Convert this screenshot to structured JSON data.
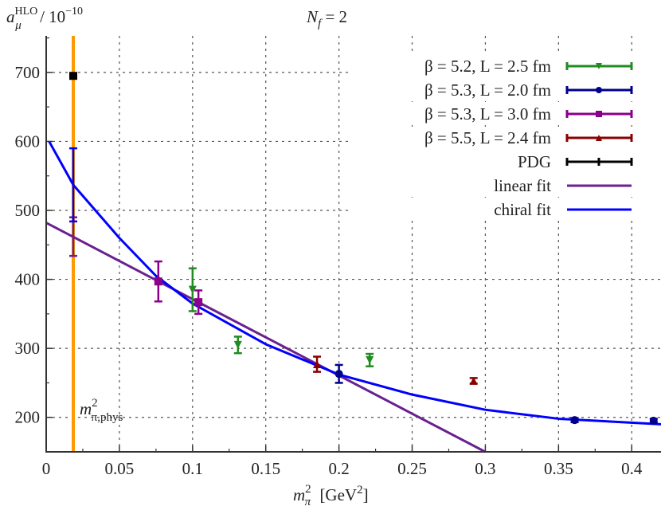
{
  "chart_data": {
    "type": "scatter",
    "title": {
      "N": "N",
      "sub": "f",
      "rest": " = 2"
    },
    "xlabel": {
      "m": "m",
      "sub": "π",
      "sup": "2",
      "unit": " [GeV",
      "unit_sup": "2",
      "close": "]"
    },
    "ylabel": {
      "a": "a",
      "sub": "μ",
      "sup": "HLO",
      "rest": " / 10",
      "exp": "−10"
    },
    "xlim": [
      0,
      0.42
    ],
    "ylim": [
      150,
      753
    ],
    "xticks": [
      0,
      0.05,
      0.1,
      0.15,
      0.2,
      0.25,
      0.3,
      0.35,
      0.4
    ],
    "xtick_labels": [
      "0",
      "0.05",
      "0.1",
      "0.15",
      "0.2",
      "0.25",
      "0.3",
      "0.35",
      "0.4"
    ],
    "yticks": [
      200,
      300,
      400,
      500,
      600,
      700
    ],
    "ytick_labels": [
      "200",
      "300",
      "400",
      "500",
      "600",
      "700"
    ],
    "grid": true,
    "legend_position": "top-right",
    "physical_point": {
      "x": 0.0185,
      "label": {
        "m": "m",
        "sup": "2",
        "sub": "π,phys"
      },
      "color": "#ff9900"
    },
    "series": [
      {
        "name": "β = 5.2, L = 2.5 fm",
        "color": "#228b22",
        "marker": "triangle-down",
        "x": [
          0.1,
          0.131,
          0.221
        ],
        "y": [
          385,
          305,
          283
        ],
        "err": [
          31,
          12,
          9
        ]
      },
      {
        "name": "β = 5.3, L = 2.0 fm",
        "color": "#00008b",
        "marker": "circle",
        "x": [
          0.2,
          0.361,
          0.415
        ],
        "y": [
          263,
          196,
          195
        ],
        "err": [
          13,
          3,
          3
        ]
      },
      {
        "name": "β = 5.3, L = 3.0 fm",
        "color": "#8b008b",
        "marker": "square",
        "x": [
          0.0766,
          0.104
        ],
        "y": [
          397,
          367
        ],
        "err": [
          29,
          17
        ]
      },
      {
        "name": "β = 5.5, L = 2.4 fm",
        "color": "#8b0000",
        "marker": "triangle-up",
        "x": [
          0.185,
          0.292
        ],
        "y": [
          277,
          253
        ],
        "err": [
          11,
          4
        ]
      },
      {
        "name": "PDG",
        "color": "#000000",
        "marker": "square",
        "x": [
          0.0185
        ],
        "y": [
          695
        ],
        "err": [
          0
        ]
      }
    ],
    "fits": [
      {
        "name": "linear fit",
        "color": "#6a2090",
        "x": [
          0,
          0.3
        ],
        "y": [
          482,
          150
        ],
        "extrapolation": {
          "x": 0.0185,
          "y": 462,
          "err": 28
        }
      },
      {
        "name": "chiral fit",
        "color": "#0000ff",
        "x": [
          0.002,
          0.0185,
          0.05,
          0.075,
          0.1,
          0.15,
          0.2,
          0.25,
          0.3,
          0.35,
          0.42
        ],
        "y": [
          600,
          537,
          460,
          405,
          365,
          306,
          262,
          233,
          211,
          198,
          190
        ],
        "extrapolation": {
          "x": 0.0185,
          "y": 537,
          "err": 53
        }
      }
    ]
  }
}
